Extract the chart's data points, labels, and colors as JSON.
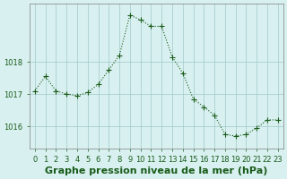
{
  "x": [
    0,
    1,
    2,
    3,
    4,
    5,
    6,
    7,
    8,
    9,
    10,
    11,
    12,
    13,
    14,
    15,
    16,
    17,
    18,
    19,
    20,
    21,
    22,
    23
  ],
  "y": [
    1017.1,
    1017.55,
    1017.1,
    1017.0,
    1016.95,
    1017.05,
    1017.3,
    1017.75,
    1018.2,
    1019.45,
    1019.3,
    1019.1,
    1019.1,
    1018.15,
    1017.65,
    1016.85,
    1016.6,
    1016.35,
    1015.75,
    1015.7,
    1015.75,
    1015.95,
    1016.2,
    1016.2
  ],
  "line_color": "#1a5c1a",
  "marker": "+",
  "marker_size": 4,
  "line_width": 0.8,
  "bg_color": "#d8f0f0",
  "grid_color": "#a0c8c8",
  "axis_color": "#808080",
  "yticks": [
    1016,
    1017,
    1018
  ],
  "xticks": [
    0,
    1,
    2,
    3,
    4,
    5,
    6,
    7,
    8,
    9,
    10,
    11,
    12,
    13,
    14,
    15,
    16,
    17,
    18,
    19,
    20,
    21,
    22,
    23
  ],
  "xlabel": "Graphe pression niveau de la mer (hPa)",
  "xlabel_color": "#1a5c1a",
  "xlabel_fontsize": 8,
  "tick_fontsize": 6,
  "ylim": [
    1015.3,
    1019.8
  ]
}
